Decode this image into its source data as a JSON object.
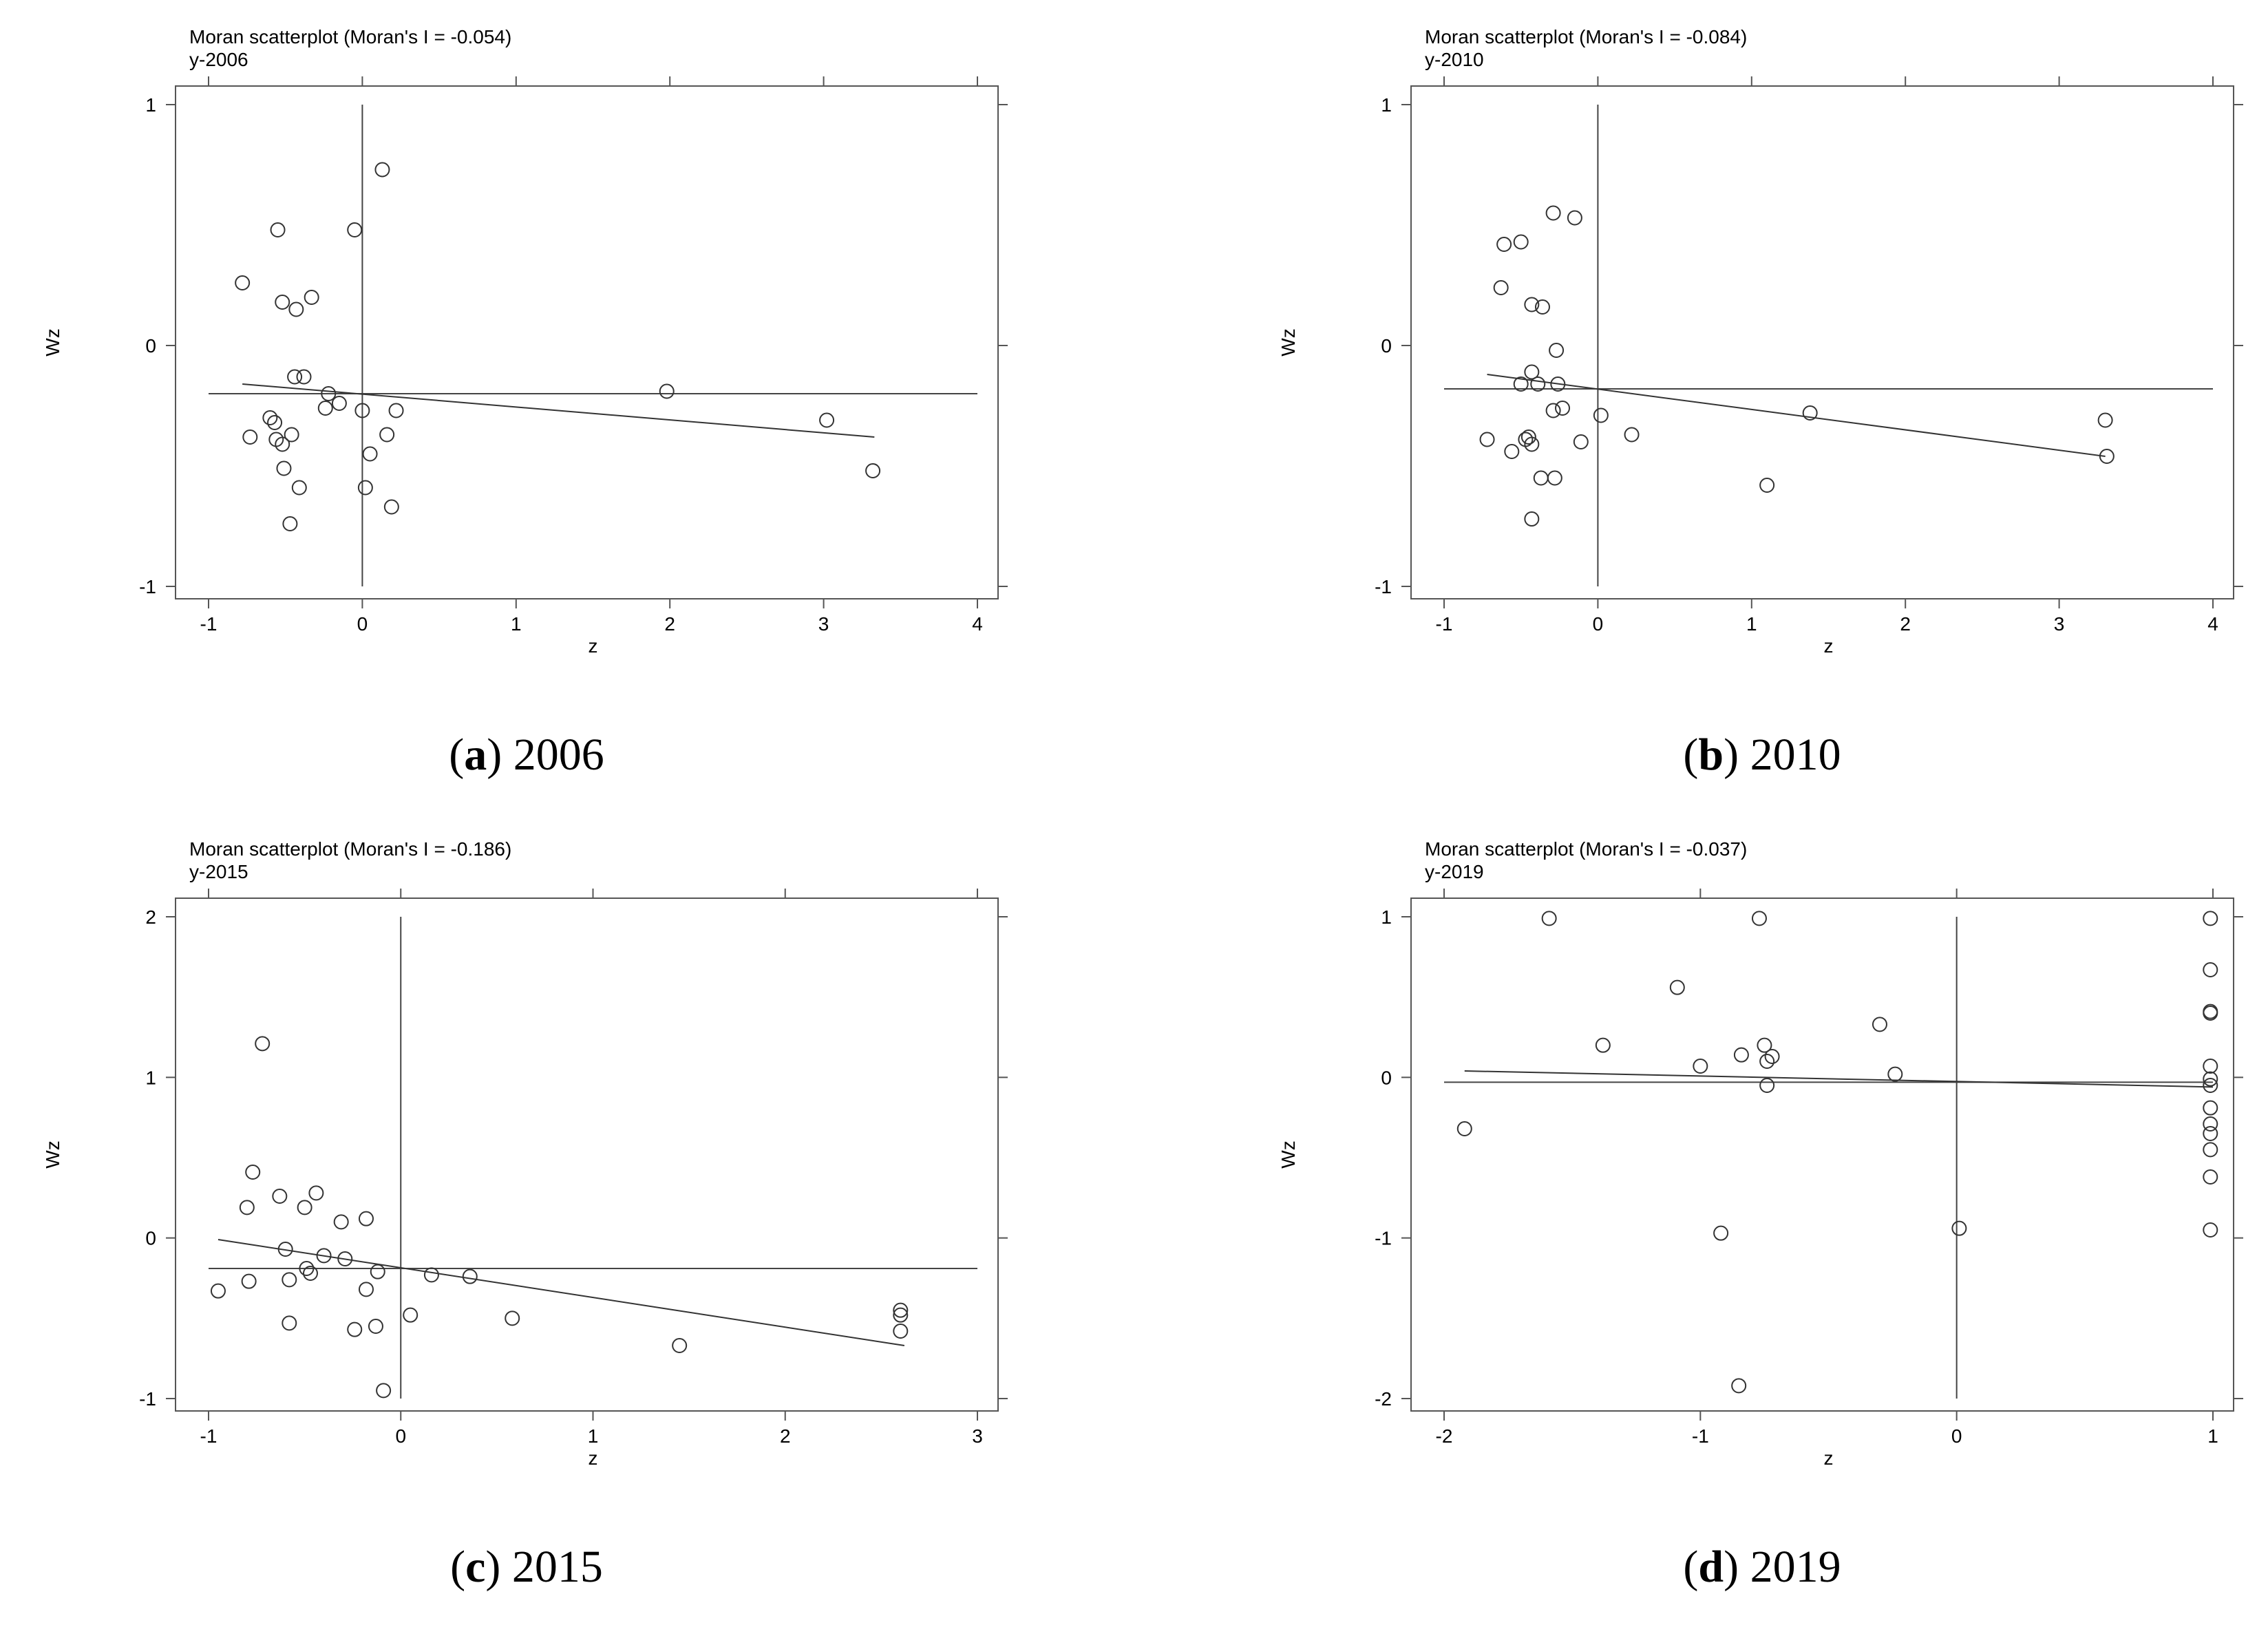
{
  "chart_data": [
    {
      "type": "scatter",
      "title": "Moran scatterplot (Moran's I = -0.054)",
      "subtitle": "y-2006",
      "xlabel": "z",
      "ylabel": "Wz",
      "xlim": [
        -1,
        4
      ],
      "ylim": [
        -1,
        1
      ],
      "xticks": [
        -1,
        0,
        1,
        2,
        3,
        4
      ],
      "yticks": [
        -1,
        0,
        1
      ],
      "xticklabels": [
        "-1",
        "0",
        "1",
        "2",
        "3",
        "4"
      ],
      "yticklabels": [
        "-1",
        "0",
        "1"
      ],
      "caption_letter": "a",
      "caption_year": "2006",
      "mean_x": 0,
      "mean_y": -0.2,
      "fit": {
        "x": [
          -0.78,
          3.33
        ],
        "y": [
          -0.16,
          -0.38
        ]
      },
      "points": [
        [
          -0.78,
          0.26
        ],
        [
          -0.73,
          -0.38
        ],
        [
          -0.6,
          -0.3
        ],
        [
          -0.57,
          -0.32
        ],
        [
          -0.56,
          -0.39
        ],
        [
          -0.55,
          0.48
        ],
        [
          -0.52,
          -0.41
        ],
        [
          -0.52,
          0.18
        ],
        [
          -0.51,
          -0.51
        ],
        [
          -0.47,
          -0.74
        ],
        [
          -0.46,
          -0.37
        ],
        [
          -0.44,
          -0.13
        ],
        [
          -0.43,
          0.15
        ],
        [
          -0.41,
          -0.59
        ],
        [
          -0.38,
          -0.13
        ],
        [
          -0.33,
          0.2
        ],
        [
          -0.24,
          -0.26
        ],
        [
          -0.22,
          -0.2
        ],
        [
          -0.15,
          -0.24
        ],
        [
          -0.05,
          0.48
        ],
        [
          0,
          -0.27
        ],
        [
          0.02,
          -0.59
        ],
        [
          0.05,
          -0.45
        ],
        [
          0.13,
          0.73
        ],
        [
          0.16,
          -0.37
        ],
        [
          0.19,
          -0.67
        ],
        [
          0.22,
          -0.27
        ],
        [
          1.98,
          -0.19
        ],
        [
          3.02,
          -0.31
        ],
        [
          3.32,
          -0.52
        ]
      ]
    },
    {
      "type": "scatter",
      "title": "Moran scatterplot (Moran's I = -0.084)",
      "subtitle": "y-2010",
      "xlabel": "z",
      "ylabel": "Wz",
      "xlim": [
        -1,
        4
      ],
      "ylim": [
        -1,
        1
      ],
      "xticks": [
        -1,
        0,
        1,
        2,
        3,
        4
      ],
      "yticks": [
        -1,
        0,
        1
      ],
      "xticklabels": [
        "-1",
        "0",
        "1",
        "2",
        "3",
        "4"
      ],
      "yticklabels": [
        "-1",
        "0",
        "1"
      ],
      "caption_letter": "b",
      "caption_year": "2010",
      "mean_x": 0,
      "mean_y": -0.18,
      "fit": {
        "x": [
          -0.72,
          3.3
        ],
        "y": [
          -0.12,
          -0.46
        ]
      },
      "points": [
        [
          -0.72,
          -0.39
        ],
        [
          -0.63,
          0.24
        ],
        [
          -0.61,
          0.42
        ],
        [
          -0.56,
          -0.44
        ],
        [
          -0.5,
          -0.16
        ],
        [
          -0.5,
          0.43
        ],
        [
          -0.47,
          -0.39
        ],
        [
          -0.45,
          -0.38
        ],
        [
          -0.43,
          -0.41
        ],
        [
          -0.43,
          -0.11
        ],
        [
          -0.43,
          0.17
        ],
        [
          -0.43,
          -0.72
        ],
        [
          -0.39,
          -0.16
        ],
        [
          -0.37,
          -0.55
        ],
        [
          -0.36,
          0.16
        ],
        [
          -0.29,
          -0.27
        ],
        [
          -0.29,
          0.55
        ],
        [
          -0.28,
          -0.55
        ],
        [
          -0.27,
          -0.02
        ],
        [
          -0.26,
          -0.16
        ],
        [
          -0.23,
          -0.26
        ],
        [
          -0.15,
          0.53
        ],
        [
          -0.11,
          -0.4
        ],
        [
          0.02,
          -0.29
        ],
        [
          0.22,
          -0.37
        ],
        [
          1.1,
          -0.58
        ],
        [
          1.38,
          -0.28
        ],
        [
          3.3,
          -0.31
        ],
        [
          3.31,
          -0.46
        ]
      ]
    },
    {
      "type": "scatter",
      "title": "Moran scatterplot (Moran's I = -0.186)",
      "subtitle": "y-2015",
      "xlabel": "z",
      "ylabel": "Wz",
      "xlim": [
        -1,
        3
      ],
      "ylim": [
        -1,
        2
      ],
      "xticks": [
        -1,
        0,
        1,
        2,
        3
      ],
      "yticks": [
        -1,
        0,
        1,
        2
      ],
      "xticklabels": [
        "-1",
        "0",
        "1",
        "2",
        "3"
      ],
      "yticklabels": [
        "-1",
        "0",
        "1",
        "2"
      ],
      "caption_letter": "c",
      "caption_year": "2015",
      "mean_x": 0,
      "mean_y": -0.19,
      "fit": {
        "x": [
          -0.95,
          2.62
        ],
        "y": [
          -0.01,
          -0.67
        ]
      },
      "points": [
        [
          -0.95,
          -0.33
        ],
        [
          -0.8,
          0.19
        ],
        [
          -0.79,
          -0.27
        ],
        [
          -0.77,
          0.41
        ],
        [
          -0.72,
          1.21
        ],
        [
          -0.63,
          0.26
        ],
        [
          -0.6,
          -0.07
        ],
        [
          -0.58,
          -0.26
        ],
        [
          -0.58,
          -0.53
        ],
        [
          -0.5,
          0.19
        ],
        [
          -0.49,
          -0.19
        ],
        [
          -0.47,
          -0.22
        ],
        [
          -0.44,
          0.28
        ],
        [
          -0.4,
          -0.11
        ],
        [
          -0.31,
          0.1
        ],
        [
          -0.29,
          -0.13
        ],
        [
          -0.24,
          -0.57
        ],
        [
          -0.18,
          -0.32
        ],
        [
          -0.18,
          0.12
        ],
        [
          -0.13,
          -0.55
        ],
        [
          -0.12,
          -0.21
        ],
        [
          -0.09,
          -0.95
        ],
        [
          0.05,
          -0.48
        ],
        [
          0.16,
          -0.23
        ],
        [
          0.36,
          -0.24
        ],
        [
          0.58,
          -0.5
        ],
        [
          1.45,
          -0.67
        ],
        [
          2.6,
          -0.45
        ],
        [
          2.6,
          -0.48
        ],
        [
          2.6,
          -0.58
        ]
      ]
    },
    {
      "type": "scatter",
      "title": "Moran scatterplot (Moran's I = -0.037)",
      "subtitle": "y-2019",
      "xlabel": "z",
      "ylabel": "Wz",
      "xlim": [
        -2,
        1
      ],
      "ylim": [
        -2,
        1
      ],
      "xticks": [
        -2,
        -1,
        0,
        1
      ],
      "yticks": [
        -2,
        -1,
        0,
        1
      ],
      "xticklabels": [
        "-2",
        "-1",
        "0",
        "1"
      ],
      "yticklabels": [
        "-2",
        "-1",
        "0",
        "1"
      ],
      "caption_letter": "d",
      "caption_year": "2019",
      "mean_x": 0,
      "mean_y": -0.03,
      "fit": {
        "x": [
          -1.92,
          1.0
        ],
        "y": [
          0.04,
          -0.06
        ]
      },
      "points": [
        [
          -1.92,
          -0.32
        ],
        [
          -1.59,
          0.99
        ],
        [
          -1.38,
          0.2
        ],
        [
          -1.09,
          0.56
        ],
        [
          -1.0,
          0.07
        ],
        [
          -0.92,
          -0.97
        ],
        [
          -0.85,
          -1.92
        ],
        [
          -0.84,
          0.14
        ],
        [
          -0.77,
          0.99
        ],
        [
          -0.75,
          0.2
        ],
        [
          -0.74,
          0.1
        ],
        [
          -0.74,
          -0.05
        ],
        [
          -0.72,
          0.13
        ],
        [
          -0.3,
          0.33
        ],
        [
          -0.24,
          0.02
        ],
        [
          0.01,
          -0.94
        ],
        [
          0.99,
          0.99
        ],
        [
          0.99,
          0.67
        ],
        [
          0.99,
          0.41
        ],
        [
          0.99,
          0.4
        ],
        [
          0.99,
          0.07
        ],
        [
          0.99,
          -0.01
        ],
        [
          0.99,
          -0.05
        ],
        [
          0.99,
          -0.19
        ],
        [
          0.99,
          -0.29
        ],
        [
          0.99,
          -0.35
        ],
        [
          0.99,
          -0.45
        ],
        [
          0.99,
          -0.62
        ],
        [
          0.99,
          -0.95
        ]
      ]
    }
  ]
}
